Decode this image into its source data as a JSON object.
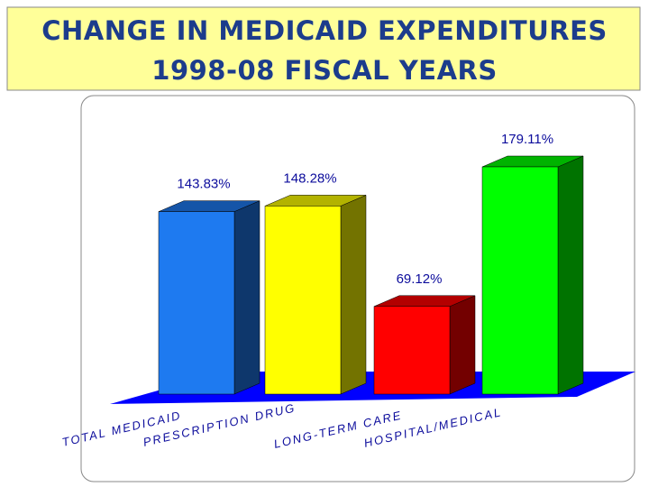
{
  "chart_data": {
    "type": "bar3d",
    "title": "CHANGE IN MEDICAID EXPENDITURES",
    "subtitle": "1998-08 FISCAL YEARS",
    "categories": [
      "TOTAL MEDICAID",
      "PRESCRIPTION DRUG",
      "LONG-TERM CARE",
      "HOSPITAL/MEDICAL"
    ],
    "values": [
      143.83,
      148.28,
      69.12,
      179.11
    ],
    "value_labels": [
      "143.83%",
      "148.28%",
      "69.12%",
      "179.11%"
    ],
    "colors": [
      "#1e7af0",
      "#ffff00",
      "#ff0000",
      "#00ff00"
    ]
  }
}
